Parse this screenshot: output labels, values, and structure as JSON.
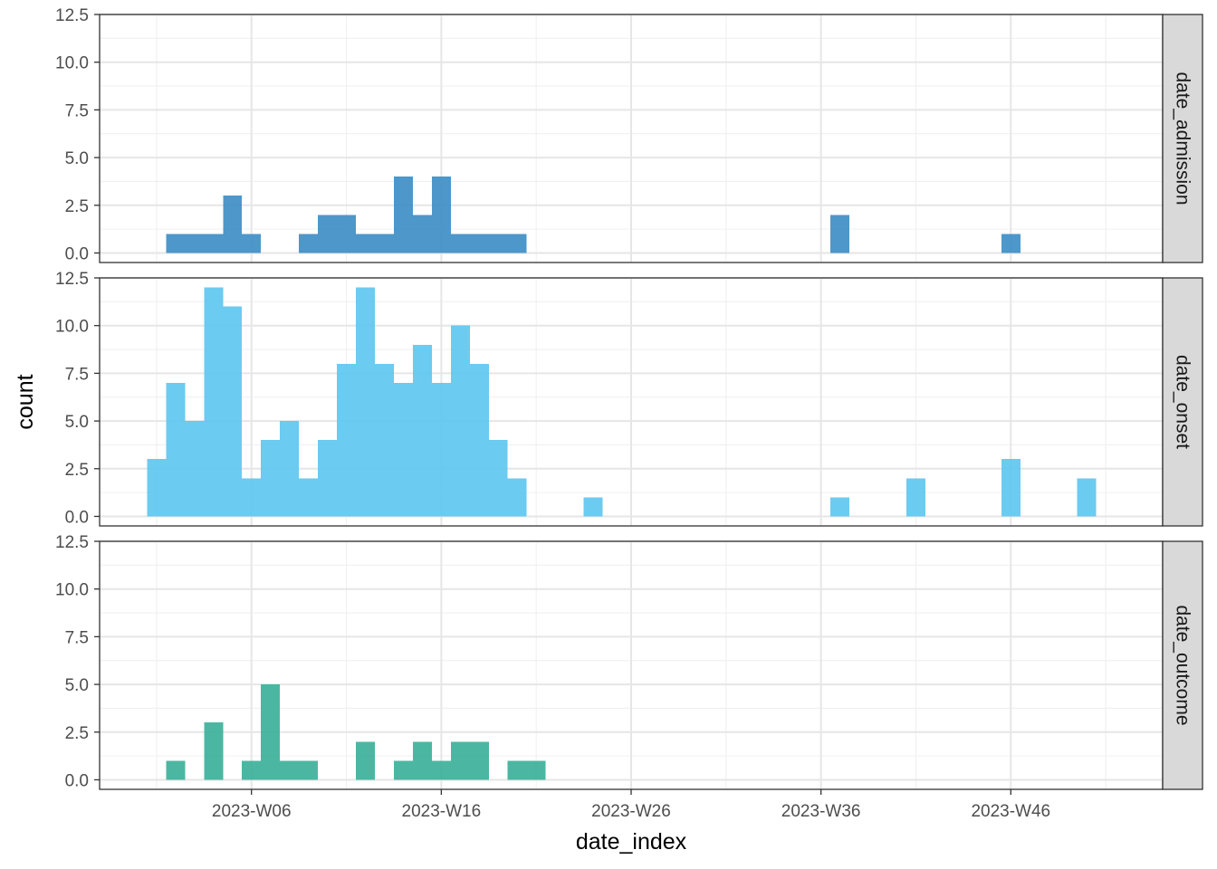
{
  "chart_data": {
    "type": "bar",
    "x_label": "date_index",
    "y_label": "count",
    "x_ticks": [
      "2023-W06",
      "2023-W16",
      "2023-W26",
      "2023-W36",
      "2023-W46"
    ],
    "x_tick_weeks": [
      6,
      16,
      26,
      36,
      46
    ],
    "x_range_weeks": [
      -2,
      54
    ],
    "y_ticks": [
      "0.0",
      "2.5",
      "5.0",
      "7.5",
      "10.0",
      "12.5"
    ],
    "y_tick_values": [
      0,
      2.5,
      5,
      7.5,
      10,
      12.5
    ],
    "ylim": [
      -0.5,
      12.5
    ],
    "bin_width_weeks": 1,
    "grid": true,
    "facets": [
      {
        "strip": "date_admission",
        "color": "#3A8CC4",
        "bins": [
          {
            "week": 2,
            "count": 1
          },
          {
            "week": 3,
            "count": 1
          },
          {
            "week": 4,
            "count": 1
          },
          {
            "week": 5,
            "count": 3
          },
          {
            "week": 6,
            "count": 1
          },
          {
            "week": 9,
            "count": 1
          },
          {
            "week": 10,
            "count": 2
          },
          {
            "week": 11,
            "count": 2
          },
          {
            "week": 12,
            "count": 1
          },
          {
            "week": 13,
            "count": 1
          },
          {
            "week": 14,
            "count": 4
          },
          {
            "week": 15,
            "count": 2
          },
          {
            "week": 16,
            "count": 4
          },
          {
            "week": 17,
            "count": 1
          },
          {
            "week": 18,
            "count": 1
          },
          {
            "week": 19,
            "count": 1
          },
          {
            "week": 20,
            "count": 1
          },
          {
            "week": 37,
            "count": 2
          },
          {
            "week": 46,
            "count": 1
          }
        ]
      },
      {
        "strip": "date_onset",
        "color": "#5BC5EF",
        "bins": [
          {
            "week": 1,
            "count": 3
          },
          {
            "week": 2,
            "count": 7
          },
          {
            "week": 3,
            "count": 5
          },
          {
            "week": 4,
            "count": 12
          },
          {
            "week": 5,
            "count": 11
          },
          {
            "week": 6,
            "count": 2
          },
          {
            "week": 7,
            "count": 4
          },
          {
            "week": 8,
            "count": 5
          },
          {
            "week": 9,
            "count": 2
          },
          {
            "week": 10,
            "count": 4
          },
          {
            "week": 11,
            "count": 8
          },
          {
            "week": 12,
            "count": 12
          },
          {
            "week": 13,
            "count": 8
          },
          {
            "week": 14,
            "count": 7
          },
          {
            "week": 15,
            "count": 9
          },
          {
            "week": 16,
            "count": 7
          },
          {
            "week": 17,
            "count": 10
          },
          {
            "week": 18,
            "count": 8
          },
          {
            "week": 19,
            "count": 4
          },
          {
            "week": 20,
            "count": 2
          },
          {
            "week": 24,
            "count": 1
          },
          {
            "week": 37,
            "count": 1
          },
          {
            "week": 41,
            "count": 2
          },
          {
            "week": 46,
            "count": 3
          },
          {
            "week": 50,
            "count": 2
          }
        ]
      },
      {
        "strip": "date_outcome",
        "color": "#37AF98",
        "bins": [
          {
            "week": 2,
            "count": 1
          },
          {
            "week": 4,
            "count": 3
          },
          {
            "week": 6,
            "count": 1
          },
          {
            "week": 7,
            "count": 5
          },
          {
            "week": 8,
            "count": 1
          },
          {
            "week": 9,
            "count": 1
          },
          {
            "week": 12,
            "count": 2
          },
          {
            "week": 14,
            "count": 1
          },
          {
            "week": 15,
            "count": 2
          },
          {
            "week": 16,
            "count": 1
          },
          {
            "week": 17,
            "count": 2
          },
          {
            "week": 18,
            "count": 2
          },
          {
            "week": 20,
            "count": 1
          },
          {
            "week": 21,
            "count": 1
          }
        ]
      }
    ]
  }
}
